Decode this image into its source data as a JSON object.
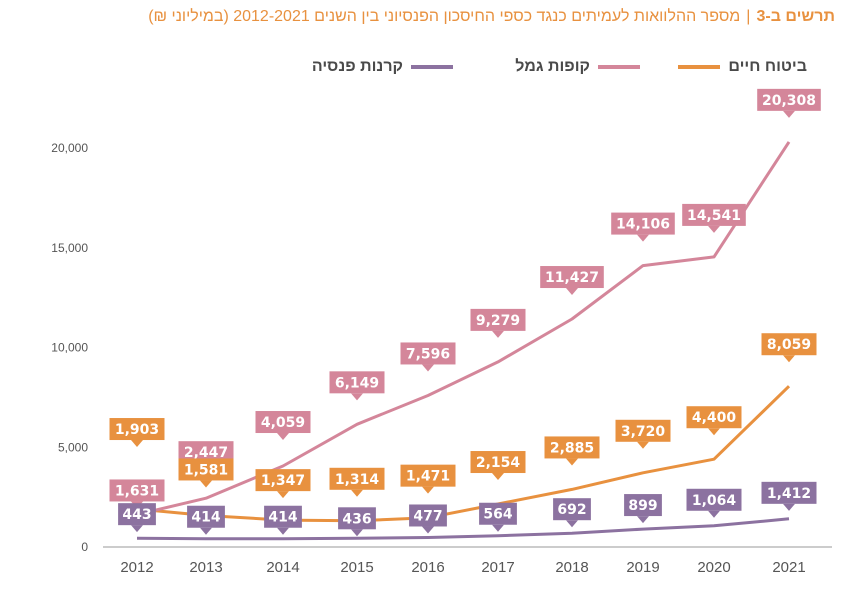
{
  "title": {
    "prefix": "תרשים ב-3",
    "separator": "|",
    "text": "מספר ההלוואות לעמיתים כנגד כספי החיסכון הפנסיוני בין השנים 2012-2021 (במיליוני ₪)"
  },
  "colors": {
    "life_insurance": "#e8913f",
    "provident_funds": "#d4869a",
    "pension_funds": "#8c72a0",
    "title": "#e8913f"
  },
  "chart_data": {
    "type": "line",
    "title": "מספר ההלוואות לעמיתים כנגד כספי החיסכון הפנסיוני בין השנים 2012-2021 (במיליוני ₪)",
    "xlabel": "",
    "ylabel": "",
    "x": [
      "2012",
      "2013",
      "2014",
      "2015",
      "2016",
      "2017",
      "2018",
      "2019",
      "2020",
      "2021"
    ],
    "ylim": [
      0,
      20000
    ],
    "yticks": [
      "0",
      "5,000",
      "10,000",
      "15,000",
      "20,000"
    ],
    "ytick_values": [
      0,
      5000,
      10000,
      15000,
      20000
    ],
    "grid": false,
    "legend_position": "top",
    "series": [
      {
        "name": "ביטוח חיים",
        "key": "life_insurance",
        "values": [
          1903,
          1581,
          1347,
          1314,
          1471,
          2154,
          2885,
          3720,
          4400,
          8059
        ],
        "labels": [
          "1,903",
          "1,581",
          "1,347",
          "1,314",
          "1,471",
          "2,154",
          "2,885",
          "3,720",
          "4,400",
          "8,059"
        ]
      },
      {
        "name": "קופות גמל",
        "key": "provident_funds",
        "values": [
          1631,
          2447,
          4059,
          6149,
          7596,
          9279,
          11427,
          14106,
          14541,
          20308
        ],
        "labels": [
          "1,631",
          "2,447",
          "4,059",
          "6,149",
          "7,596",
          "9,279",
          "11,427",
          "14,106",
          "14,541",
          "20,308"
        ]
      },
      {
        "name": "קרנות פנסיה",
        "key": "pension_funds",
        "values": [
          443,
          414,
          414,
          436,
          477,
          564,
          692,
          899,
          1064,
          1412
        ],
        "labels": [
          "443",
          "414",
          "414",
          "436",
          "477",
          "564",
          "692",
          "899",
          "1,064",
          "1,412"
        ]
      }
    ]
  }
}
